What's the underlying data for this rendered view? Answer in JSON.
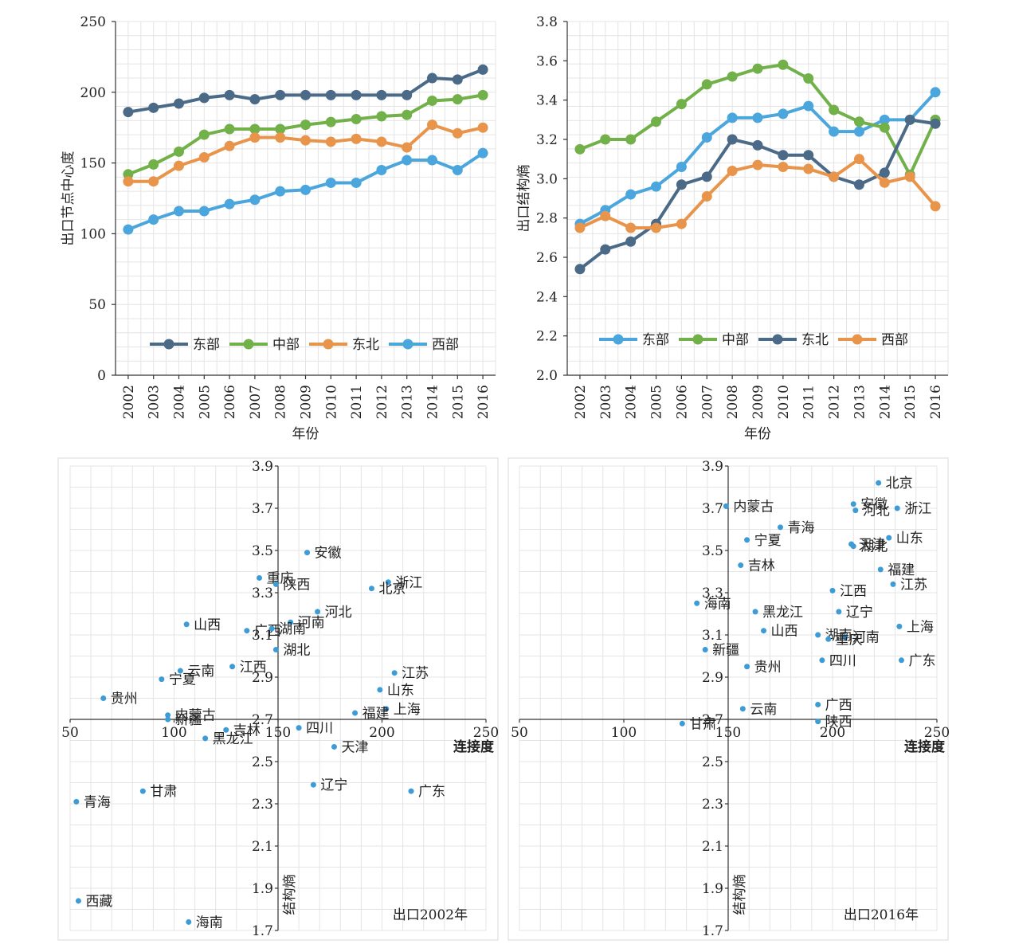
{
  "chart_data": [
    {
      "type": "line",
      "title": "",
      "xlabel": "年份",
      "ylabel": "出口节点中心度",
      "ylim": [
        0,
        250
      ],
      "yticks": [
        0,
        50,
        100,
        150,
        200,
        250
      ],
      "grid": true,
      "legend": "bottom-inside",
      "categories": [
        "2002",
        "2003",
        "2004",
        "2005",
        "2006",
        "2007",
        "2008",
        "2009",
        "2010",
        "2011",
        "2012",
        "2013",
        "2014",
        "2015",
        "2016"
      ],
      "series": [
        {
          "name": "东部",
          "color": "#4a6a88",
          "values": [
            186,
            189,
            192,
            196,
            198,
            195,
            198,
            198,
            198,
            198,
            198,
            198,
            210,
            209,
            216
          ]
        },
        {
          "name": "中部",
          "color": "#72b04a",
          "values": [
            142,
            149,
            158,
            170,
            174,
            174,
            174,
            177,
            179,
            181,
            183,
            184,
            194,
            195,
            198
          ]
        },
        {
          "name": "东北",
          "color": "#e8944a",
          "values": [
            137,
            137,
            148,
            154,
            162,
            168,
            168,
            166,
            165,
            167,
            165,
            161,
            177,
            171,
            175
          ]
        },
        {
          "name": "西部",
          "color": "#4aa6dc",
          "values": [
            103,
            110,
            116,
            116,
            121,
            124,
            130,
            131,
            136,
            136,
            145,
            152,
            152,
            145,
            157
          ]
        }
      ]
    },
    {
      "type": "line",
      "title": "",
      "xlabel": "年份",
      "ylabel": "出口结构熵",
      "ylim": [
        2.0,
        3.8
      ],
      "yticks": [
        "2.0",
        "2.2",
        "2.4",
        "2.6",
        "2.8",
        "3.0",
        "3.2",
        "3.4",
        "3.6",
        "3.8"
      ],
      "grid": true,
      "legend": "bottom-inside",
      "categories": [
        "2002",
        "2003",
        "2004",
        "2005",
        "2006",
        "2007",
        "2008",
        "2009",
        "2010",
        "2011",
        "2012",
        "2013",
        "2014",
        "2015",
        "2016"
      ],
      "series": [
        {
          "name": "东部",
          "color": "#4aa6dc",
          "values": [
            2.77,
            2.84,
            2.92,
            2.96,
            3.06,
            3.21,
            3.31,
            3.31,
            3.33,
            3.37,
            3.24,
            3.24,
            3.3,
            3.3,
            3.44
          ]
        },
        {
          "name": "中部",
          "color": "#72b04a",
          "values": [
            3.15,
            3.2,
            3.2,
            3.29,
            3.38,
            3.48,
            3.52,
            3.56,
            3.58,
            3.51,
            3.35,
            3.29,
            3.26,
            3.02,
            3.3
          ]
        },
        {
          "name": "东北",
          "color": "#4a6a88",
          "values": [
            2.54,
            2.64,
            2.68,
            2.77,
            2.97,
            3.01,
            3.2,
            3.17,
            3.12,
            3.12,
            3.01,
            2.97,
            3.03,
            3.3,
            3.28
          ]
        },
        {
          "name": "西部",
          "color": "#e8944a",
          "values": [
            2.75,
            2.81,
            2.75,
            2.75,
            2.77,
            2.91,
            3.04,
            3.07,
            3.06,
            3.05,
            3.01,
            3.1,
            2.98,
            3.01,
            2.86
          ]
        }
      ]
    },
    {
      "type": "scatter",
      "title": "出口2002年",
      "xlabel": "连接度",
      "ylabel": "结构熵",
      "xlim": [
        50,
        250
      ],
      "ylim": [
        1.7,
        3.9
      ],
      "xticks": [
        "50",
        "100",
        "150",
        "200",
        "250"
      ],
      "yticks": [
        "1.7",
        "1.9",
        "2.1",
        "2.3",
        "2.5",
        "2.7",
        "2.9",
        "3.1",
        "3.3",
        "3.5",
        "3.7",
        "3.9"
      ],
      "cross": {
        "x": 150,
        "y": 2.7
      },
      "points": [
        {
          "name": "安徽",
          "x": 164,
          "y": 3.49
        },
        {
          "name": "重庆",
          "x": 141,
          "y": 3.37
        },
        {
          "name": "陕西",
          "x": 149,
          "y": 3.34
        },
        {
          "name": "浙江",
          "x": 203,
          "y": 3.35
        },
        {
          "name": "北京",
          "x": 195,
          "y": 3.32
        },
        {
          "name": "河北",
          "x": 169,
          "y": 3.21
        },
        {
          "name": "山西",
          "x": 106,
          "y": 3.15
        },
        {
          "name": "广西",
          "x": 135,
          "y": 3.12
        },
        {
          "name": "河南",
          "x": 156,
          "y": 3.16
        },
        {
          "name": "湖南",
          "x": 147,
          "y": 3.13
        },
        {
          "name": "湖北",
          "x": 149,
          "y": 3.03
        },
        {
          "name": "云南",
          "x": 103,
          "y": 2.93
        },
        {
          "name": "江西",
          "x": 128,
          "y": 2.95
        },
        {
          "name": "宁夏",
          "x": 94,
          "y": 2.89
        },
        {
          "name": "江苏",
          "x": 206,
          "y": 2.92
        },
        {
          "name": "山东",
          "x": 199,
          "y": 2.84
        },
        {
          "name": "贵州",
          "x": 66,
          "y": 2.8
        },
        {
          "name": "上海",
          "x": 202,
          "y": 2.75
        },
        {
          "name": "福建",
          "x": 187,
          "y": 2.73
        },
        {
          "name": "内蒙古",
          "x": 97,
          "y": 2.72
        },
        {
          "name": "新疆",
          "x": 97,
          "y": 2.7
        },
        {
          "name": "吉林",
          "x": 125,
          "y": 2.65
        },
        {
          "name": "四川",
          "x": 160,
          "y": 2.66
        },
        {
          "name": "黑龙江",
          "x": 115,
          "y": 2.61
        },
        {
          "name": "天津",
          "x": 177,
          "y": 2.57
        },
        {
          "name": "辽宁",
          "x": 167,
          "y": 2.39
        },
        {
          "name": "甘肃",
          "x": 85,
          "y": 2.36
        },
        {
          "name": "广东",
          "x": 214,
          "y": 2.36
        },
        {
          "name": "青海",
          "x": 53,
          "y": 2.31
        },
        {
          "name": "西藏",
          "x": 54,
          "y": 1.84
        },
        {
          "name": "海南",
          "x": 107,
          "y": 1.74
        }
      ]
    },
    {
      "type": "scatter",
      "title": "出口2016年",
      "xlabel": "连接度",
      "ylabel": "结构熵",
      "xlim": [
        50,
        250
      ],
      "ylim": [
        1.7,
        3.9
      ],
      "xticks": [
        "50",
        "100",
        "150",
        "200",
        "250"
      ],
      "yticks": [
        "1.7",
        "1.9",
        "2.1",
        "2.3",
        "2.5",
        "2.7",
        "2.9",
        "3.1",
        "3.3",
        "3.5",
        "3.7",
        "3.9"
      ],
      "cross": {
        "x": 150,
        "y": 2.7
      },
      "points": [
        {
          "name": "北京",
          "x": 222,
          "y": 3.82
        },
        {
          "name": "内蒙古",
          "x": 149,
          "y": 3.71
        },
        {
          "name": "安徽",
          "x": 210,
          "y": 3.72
        },
        {
          "name": "浙江",
          "x": 231,
          "y": 3.7
        },
        {
          "name": "河北",
          "x": 211,
          "y": 3.69
        },
        {
          "name": "青海",
          "x": 175,
          "y": 3.61
        },
        {
          "name": "宁夏",
          "x": 159,
          "y": 3.55
        },
        {
          "name": "天津",
          "x": 209,
          "y": 3.53
        },
        {
          "name": "山东",
          "x": 227,
          "y": 3.56
        },
        {
          "name": "湖北",
          "x": 210,
          "y": 3.52
        },
        {
          "name": "吉林",
          "x": 156,
          "y": 3.43
        },
        {
          "name": "福建",
          "x": 223,
          "y": 3.41
        },
        {
          "name": "江苏",
          "x": 229,
          "y": 3.34
        },
        {
          "name": "江西",
          "x": 200,
          "y": 3.31
        },
        {
          "name": "海南",
          "x": 135,
          "y": 3.25
        },
        {
          "name": "黑龙江",
          "x": 163,
          "y": 3.21
        },
        {
          "name": "辽宁",
          "x": 203,
          "y": 3.21
        },
        {
          "name": "上海",
          "x": 232,
          "y": 3.14
        },
        {
          "name": "山西",
          "x": 167,
          "y": 3.12
        },
        {
          "name": "湖南",
          "x": 193,
          "y": 3.1
        },
        {
          "name": "河南",
          "x": 206,
          "y": 3.09
        },
        {
          "name": "重庆",
          "x": 198,
          "y": 3.08
        },
        {
          "name": "新疆",
          "x": 139,
          "y": 3.03
        },
        {
          "name": "四川",
          "x": 195,
          "y": 2.98
        },
        {
          "name": "广东",
          "x": 233,
          "y": 2.98
        },
        {
          "name": "贵州",
          "x": 159,
          "y": 2.95
        },
        {
          "name": "广西",
          "x": 193,
          "y": 2.77
        },
        {
          "name": "云南",
          "x": 157,
          "y": 2.75
        },
        {
          "name": "陕西",
          "x": 193,
          "y": 2.69
        },
        {
          "name": "甘肃",
          "x": 128,
          "y": 2.68
        }
      ]
    }
  ]
}
